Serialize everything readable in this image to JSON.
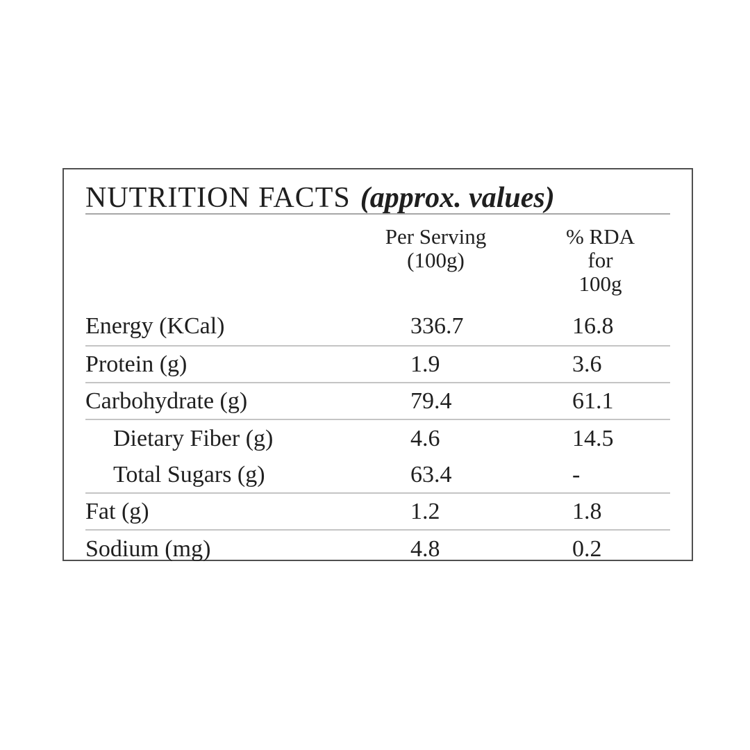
{
  "page": {
    "background_color": "#ffffff",
    "text_color": "#1f1f1f",
    "border_color": "#4f4f4f",
    "title_rule_color": "#a6a6a6",
    "row_rule_color": "#c4c4c4"
  },
  "card": {
    "title": "NUTRITION FACTS",
    "title_suffix": "(approx. values)",
    "columns": {
      "per_serving_line1": "Per Serving",
      "per_serving_line2": "(100g)",
      "rda_line1": "% RDA for",
      "rda_line2": "100g"
    },
    "rows": [
      {
        "label": "Energy (KCal)",
        "per_serving": "336.7",
        "rda": "16.8"
      },
      {
        "label": "Protein (g)",
        "per_serving": "1.9",
        "rda": "3.6"
      },
      {
        "label": "Carbohydrate (g)",
        "per_serving": "79.4",
        "rda": "61.1"
      },
      {
        "label": "Dietary Fiber (g)",
        "per_serving": "4.6",
        "rda": "14.5"
      },
      {
        "label": "Total Sugars (g)",
        "per_serving": "63.4",
        "rda": "-"
      },
      {
        "label": "Fat (g)",
        "per_serving": "1.2",
        "rda": "1.8"
      },
      {
        "label": "Sodium (mg)",
        "per_serving": "4.8",
        "rda": "0.2"
      }
    ]
  }
}
